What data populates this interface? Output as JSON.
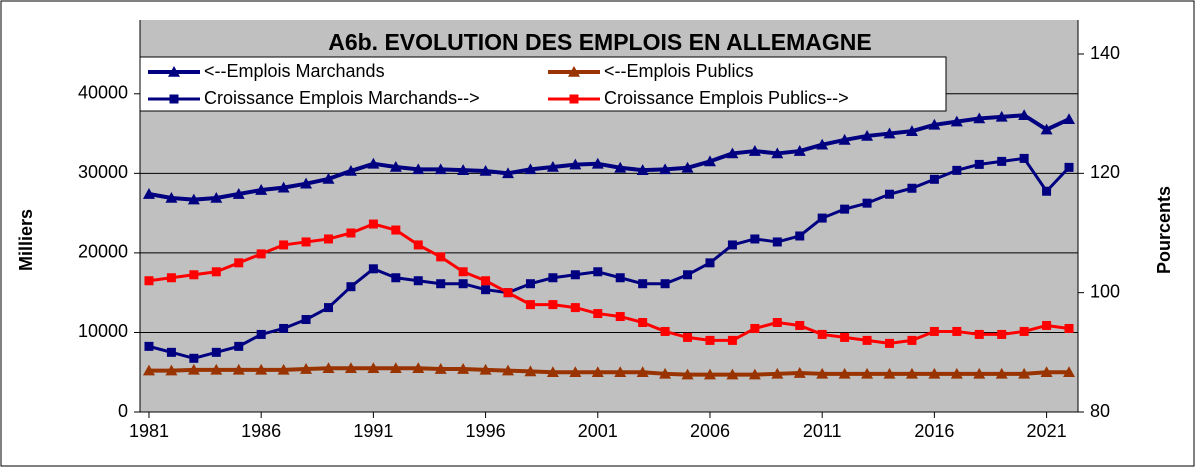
{
  "chart_data": {
    "type": "line",
    "title": "A6b. EVOLUTION DES EMPLOIS EN ALLEMAGNE",
    "y_label": "Milliers",
    "y2_label": "Pourcents",
    "x": [
      1981,
      1982,
      1983,
      1984,
      1985,
      1986,
      1987,
      1988,
      1989,
      1990,
      1991,
      1992,
      1993,
      1994,
      1995,
      1996,
      1997,
      1998,
      1999,
      2000,
      2001,
      2002,
      2003,
      2004,
      2005,
      2006,
      2007,
      2008,
      2009,
      2010,
      2011,
      2012,
      2013,
      2014,
      2015,
      2016,
      2017,
      2018,
      2019,
      2020,
      2021,
      2022
    ],
    "xlim": [
      1980.6,
      2022.4
    ],
    "xticks": [
      1981,
      1986,
      1991,
      1996,
      2001,
      2006,
      2011,
      2016,
      2021
    ],
    "ylim": [
      0,
      45000
    ],
    "yticks": [
      0,
      10000,
      20000,
      30000,
      40000
    ],
    "y2lim": [
      80,
      140
    ],
    "y2ticks": [
      80,
      100,
      120,
      140
    ],
    "grid": true,
    "legend": "top",
    "series": [
      {
        "name": "<--Emplois Marchands",
        "color": "#000080",
        "marker": "triangle",
        "values": [
          27400,
          26900,
          26700,
          26900,
          27400,
          27900,
          28200,
          28700,
          29300,
          30300,
          31200,
          30800,
          30500,
          30500,
          30400,
          30300,
          30000,
          30500,
          30800,
          31100,
          31200,
          30700,
          30400,
          30500,
          30700,
          31500,
          32500,
          32800,
          32500,
          32800,
          33600,
          34200,
          34700,
          35000,
          35300,
          36100,
          36500,
          36900,
          37100,
          37300,
          35500,
          36800
        ]
      },
      {
        "name": "<--Emplois Publics",
        "color": "#993300",
        "marker": "triangle",
        "values": [
          5200,
          5200,
          5300,
          5300,
          5300,
          5300,
          5300,
          5400,
          5500,
          5500,
          5500,
          5500,
          5500,
          5400,
          5400,
          5300,
          5200,
          5100,
          5000,
          5000,
          5000,
          5000,
          5000,
          4800,
          4700,
          4700,
          4700,
          4700,
          4800,
          4900,
          4800,
          4800,
          4800,
          4800,
          4800,
          4800,
          4800,
          4800,
          4800,
          4800,
          5000,
          5000
        ]
      },
      {
        "name": "Croissance Emplois Marchands-->",
        "color": "#000080",
        "marker": "square",
        "axis": "y2",
        "values": [
          91,
          90,
          89,
          90,
          91,
          93,
          94,
          95.5,
          97.5,
          101,
          104,
          102.5,
          102,
          101.5,
          101.5,
          100.5,
          100,
          101.5,
          102.5,
          103,
          103.5,
          102.5,
          101.5,
          101.5,
          103,
          105,
          108,
          109,
          108.5,
          109.5,
          112.5,
          114,
          115,
          116.5,
          117.5,
          119,
          120.5,
          121.5,
          122,
          122.5,
          117,
          121
        ]
      },
      {
        "name": "Croissance Emplois Publics-->",
        "color": "#ff0000",
        "marker": "square",
        "axis": "y2",
        "values": [
          102,
          102.5,
          103,
          103.5,
          105,
          106.5,
          108,
          108.5,
          109,
          110,
          111.5,
          110.5,
          108,
          106,
          103.5,
          102,
          100,
          98,
          98,
          97.5,
          96.5,
          96,
          95,
          93.5,
          92.5,
          92,
          92,
          94,
          95,
          94.5,
          93,
          92.5,
          92,
          91.5,
          92,
          93.5,
          93.5,
          93,
          93,
          93.5,
          94.5,
          94
        ]
      }
    ]
  }
}
